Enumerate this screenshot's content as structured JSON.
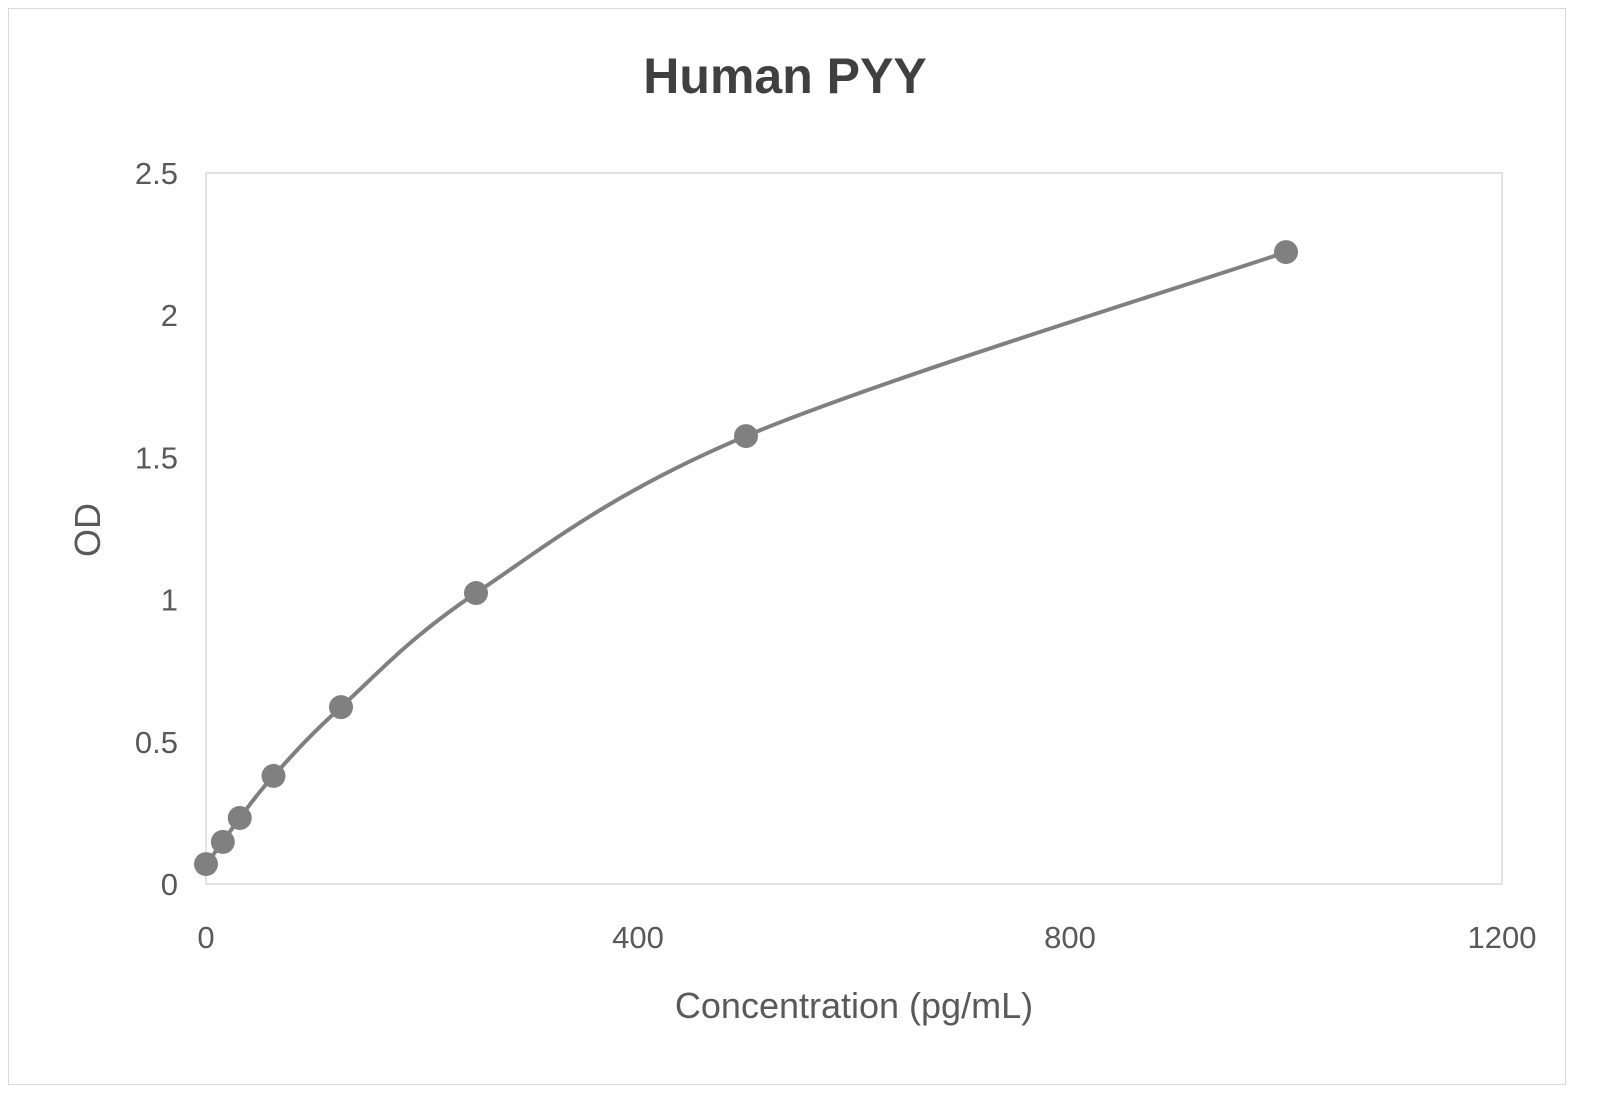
{
  "chart_data": {
    "type": "scatter",
    "title": "Human PYY",
    "xlabel": "Concentration (pg/mL)",
    "ylabel": "OD",
    "xlim": [
      0,
      1200
    ],
    "ylim": [
      0,
      2.5
    ],
    "xticks": [
      "0",
      "400",
      "800",
      "1200"
    ],
    "yticks": [
      "0",
      "0.5",
      "1",
      "1.5",
      "2",
      "2.5"
    ],
    "grid": false,
    "legend": "none",
    "line": "smoothed",
    "color": "#808080",
    "series": [
      {
        "x": [
          0,
          15.6,
          31.25,
          62.5,
          125,
          250,
          500,
          1000
        ],
        "y": [
          0.07,
          0.148,
          0.232,
          0.38,
          0.622,
          1.023,
          1.575,
          2.222
        ]
      }
    ]
  }
}
